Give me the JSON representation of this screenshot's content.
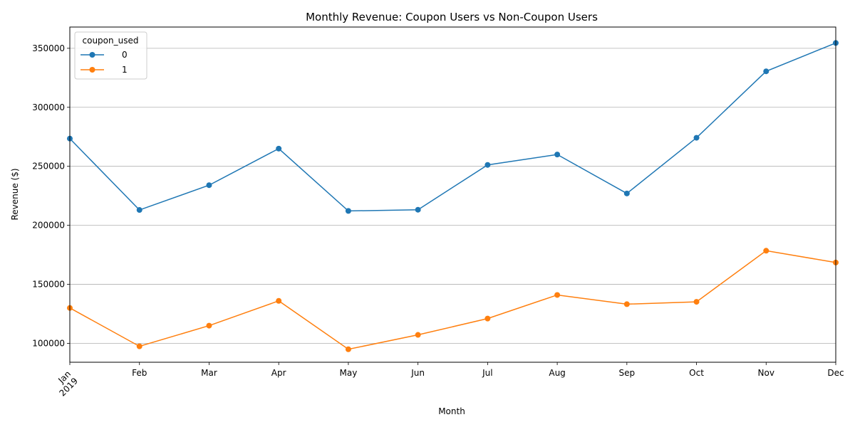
{
  "chart_data": {
    "type": "line",
    "title": "Monthly Revenue: Coupon Users vs Non-Coupon Users",
    "xlabel": "Month",
    "ylabel": "Revenue ($)",
    "x": [
      "2019-01",
      "2019-02",
      "2019-03",
      "2019-04",
      "2019-05",
      "2019-06",
      "2019-07",
      "2019-08",
      "2019-09",
      "2019-10",
      "2019-11",
      "2019-12"
    ],
    "x_tick_labels": [
      "Jan",
      "Feb",
      "Mar",
      "Apr",
      "May",
      "Jun",
      "Jul",
      "Aug",
      "Sep",
      "Oct",
      "Nov",
      "Dec"
    ],
    "x_year_label": "2019",
    "y_ticks": [
      100000,
      150000,
      200000,
      250000,
      300000,
      350000
    ],
    "ylim": [
      84000,
      368000
    ],
    "grid": "horizontal",
    "legend": {
      "title": "coupon_used",
      "placement": "top-left"
    },
    "series": [
      {
        "name": "0",
        "color": "#1f77b4",
        "values": [
          273500,
          213000,
          234000,
          265000,
          212200,
          213200,
          251200,
          260000,
          227000,
          274200,
          330500,
          354500
        ]
      },
      {
        "name": "1",
        "color": "#ff7f0e",
        "values": [
          130000,
          97500,
          115000,
          136000,
          95000,
          107200,
          121000,
          141000,
          133200,
          135200,
          178500,
          168500
        ]
      }
    ]
  }
}
